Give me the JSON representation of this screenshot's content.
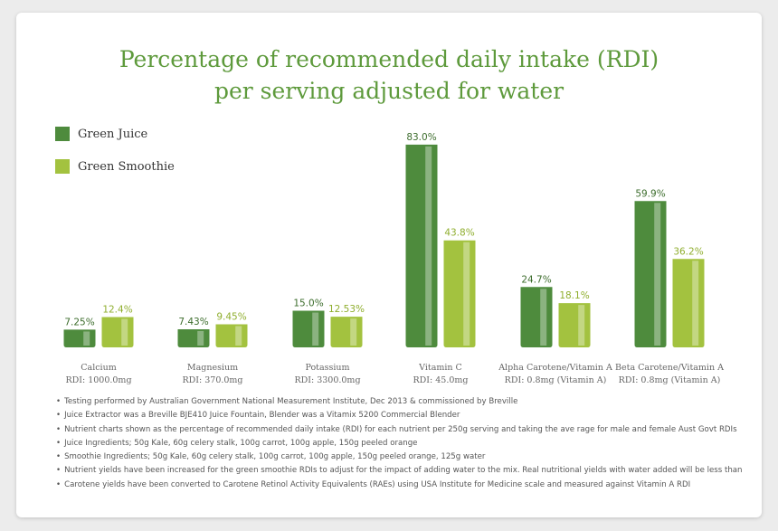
{
  "title_line1": "Percentage of recommended daily intake (RDI)",
  "title_line2": "per serving adjusted for water",
  "colors": {
    "green_juice": "#4e8b3d",
    "green_smoothie": "#a3c23f",
    "highlight": "rgba(255,255,255,0.35)"
  },
  "chart_data": {
    "type": "bar",
    "categories": [
      "Calcium",
      "Magnesium",
      "Potassium",
      "Vitamin C",
      "Alpha Carotene/Vitamin A",
      "Beta Carotene/Vitamin A"
    ],
    "rdi_labels": [
      "RDI: 1000.0mg",
      "RDI: 370.0mg",
      "RDI: 3300.0mg",
      "RDI: 45.0mg",
      "RDI: 0.8mg (Vitamin A)",
      "RDI: 0.8mg (Vitamin A)"
    ],
    "series": [
      {
        "name": "Green Juice",
        "values": [
          7.25,
          7.43,
          15.0,
          83.0,
          24.7,
          59.9
        ],
        "labels": [
          "7.25%",
          "7.43%",
          "15.0%",
          "83.0%",
          "24.7%",
          "59.9%"
        ]
      },
      {
        "name": "Green Smoothie",
        "values": [
          12.4,
          9.45,
          12.53,
          43.8,
          18.1,
          36.2
        ],
        "labels": [
          "12.4%",
          "9.45%",
          "12.53%",
          "43.8%",
          "18.1%",
          "36.2%"
        ]
      }
    ],
    "ylim": [
      0,
      100
    ],
    "legend": "top-left",
    "grid": false
  },
  "notes": [
    "Testing performed by Australian Government National Measurement Institute, Dec 2013 & commissioned by Breville",
    "Juice Extractor was a Breville BJE410 Juice Fountain, Blender was a Vitamix 5200 Commercial Blender",
    "Nutrient charts shown as the percentage of recommended daily intake (RDI) for each nutrient per 250g serving and taking the ave rage for male and female Aust Govt RDIs",
    "Juice Ingredients; 50g Kale, 60g celery stalk, 100g carrot, 100g apple, 150g peeled orange",
    "Smoothie Ingredients; 50g Kale, 60g celery stalk, 100g carrot, 100g apple, 150g peeled orange, 125g water",
    "Nutrient yields have been increased for the green smoothie RDIs to adjust for the impact of adding water to the mix. Real nutritional yields with water added will be less than above",
    "Carotene yields have been converted to Carotene Retinol Activity Equivalents (RAEs) using USA Institute for Medicine scale and measured against Vitamin A RDI"
  ]
}
